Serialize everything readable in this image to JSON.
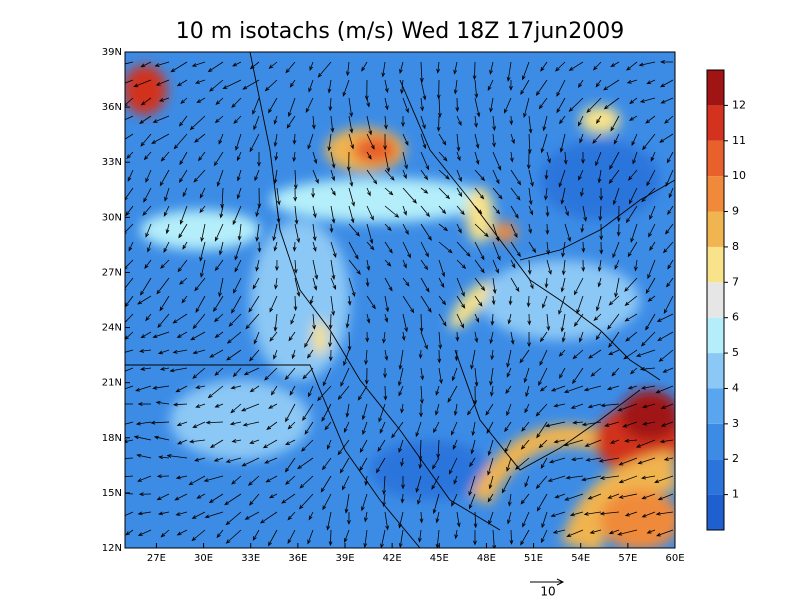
{
  "title": "10 m isotachs (m/s) Wed 18Z 17jun2009",
  "map": {
    "lon_range": [
      25,
      60
    ],
    "lat_range": [
      12,
      39
    ],
    "lon_ticks": [
      {
        "value": 27,
        "label": "27E"
      },
      {
        "value": 30,
        "label": "30E"
      },
      {
        "value": 33,
        "label": "33E"
      },
      {
        "value": 36,
        "label": "36E"
      },
      {
        "value": 39,
        "label": "39E"
      },
      {
        "value": 42,
        "label": "42E"
      },
      {
        "value": 45,
        "label": "45E"
      },
      {
        "value": 48,
        "label": "48E"
      },
      {
        "value": 51,
        "label": "51E"
      },
      {
        "value": 54,
        "label": "54E"
      },
      {
        "value": 57,
        "label": "57E"
      },
      {
        "value": 60,
        "label": "60E"
      }
    ],
    "lat_ticks": [
      {
        "value": 12,
        "label": "12N"
      },
      {
        "value": 15,
        "label": "15N"
      },
      {
        "value": 18,
        "label": "18N"
      },
      {
        "value": 21,
        "label": "21N"
      },
      {
        "value": 24,
        "label": "24N"
      },
      {
        "value": 27,
        "label": "27N"
      },
      {
        "value": 30,
        "label": "30N"
      },
      {
        "value": 33,
        "label": "33N"
      },
      {
        "value": 36,
        "label": "36N"
      },
      {
        "value": 39,
        "label": "39N"
      }
    ]
  },
  "colorbar": {
    "levels": [
      1,
      2,
      3,
      4,
      5,
      6,
      7,
      8,
      9,
      10,
      11,
      12
    ],
    "colors": [
      "#1f5fcf",
      "#2b74dc",
      "#3c8ce6",
      "#5aa5f0",
      "#8cc8f5",
      "#b4eefa",
      "#e6e6e6",
      "#f8e28a",
      "#f0b450",
      "#f08a3a",
      "#e8602c",
      "#d2321e",
      "#a01414"
    ]
  },
  "reference_vector": {
    "label": "10"
  }
}
